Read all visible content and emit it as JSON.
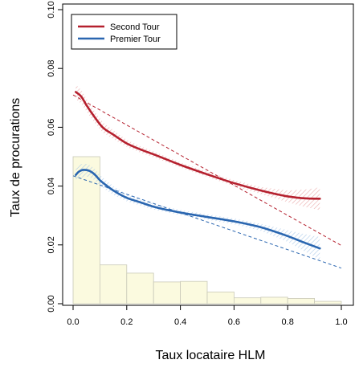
{
  "chart_data": {
    "type": "line",
    "xlabel": "Taux locataire HLM",
    "ylabel": "Taux de procurations",
    "xlim": [
      0,
      1
    ],
    "ylim": [
      0,
      0.1
    ],
    "x_ticks": [
      "0.0",
      "0.2",
      "0.4",
      "0.6",
      "0.8",
      "1.0"
    ],
    "y_ticks": [
      "0.00",
      "0.02",
      "0.04",
      "0.06",
      "0.08",
      "0.10"
    ],
    "legend_position": "top-left",
    "series": [
      {
        "name": "Second Tour",
        "color": "#b5202e",
        "smooth": {
          "x": [
            0.01,
            0.03,
            0.05,
            0.08,
            0.11,
            0.15,
            0.2,
            0.25,
            0.3,
            0.4,
            0.5,
            0.6,
            0.7,
            0.8,
            0.87,
            0.92
          ],
          "y": [
            0.072,
            0.0705,
            0.0675,
            0.0635,
            0.06,
            0.0575,
            0.0545,
            0.0525,
            0.0508,
            0.0472,
            0.044,
            0.041,
            0.0385,
            0.0365,
            0.0358,
            0.0357
          ]
        },
        "linear_fit": {
          "x": [
            0.0,
            1.0
          ],
          "y": [
            0.071,
            0.0198
          ]
        },
        "band_halfwidth": [
          0.0025,
          0.0018,
          0.0012,
          0.001,
          0.0009,
          0.0009,
          0.001,
          0.0012,
          0.002,
          0.0035,
          0.0055
        ]
      },
      {
        "name": "Premier Tour",
        "color": "#2a66b0",
        "smooth": {
          "x": [
            0.01,
            0.02,
            0.04,
            0.06,
            0.08,
            0.1,
            0.12,
            0.15,
            0.2,
            0.25,
            0.3,
            0.4,
            0.5,
            0.6,
            0.7,
            0.8,
            0.85,
            0.92
          ],
          "y": [
            0.0438,
            0.0448,
            0.0455,
            0.0452,
            0.044,
            0.042,
            0.0405,
            0.0385,
            0.036,
            0.0345,
            0.033,
            0.031,
            0.0295,
            0.028,
            0.026,
            0.023,
            0.0212,
            0.0188
          ]
        },
        "linear_fit": {
          "x": [
            0.0,
            1.0
          ],
          "y": [
            0.0435,
            0.0121
          ]
        },
        "band_halfwidth": [
          0.0025,
          0.0018,
          0.0012,
          0.001,
          0.0009,
          0.0009,
          0.001,
          0.0012,
          0.002,
          0.0035,
          0.0055
        ]
      }
    ],
    "histogram": {
      "fill": "#fbfadf",
      "stroke": "#c9c9b8",
      "bins": [
        {
          "x0": 0.0,
          "x1": 0.1,
          "value": 0.05
        },
        {
          "x0": 0.1,
          "x1": 0.2,
          "value": 0.0132
        },
        {
          "x0": 0.2,
          "x1": 0.3,
          "value": 0.0104
        },
        {
          "x0": 0.3,
          "x1": 0.4,
          "value": 0.0074
        },
        {
          "x0": 0.4,
          "x1": 0.5,
          "value": 0.0076
        },
        {
          "x0": 0.5,
          "x1": 0.6,
          "value": 0.004
        },
        {
          "x0": 0.6,
          "x1": 0.7,
          "value": 0.002
        },
        {
          "x0": 0.7,
          "x1": 0.8,
          "value": 0.0022
        },
        {
          "x0": 0.8,
          "x1": 0.9,
          "value": 0.0018
        },
        {
          "x0": 0.9,
          "x1": 1.0,
          "value": 0.0008
        }
      ]
    }
  }
}
